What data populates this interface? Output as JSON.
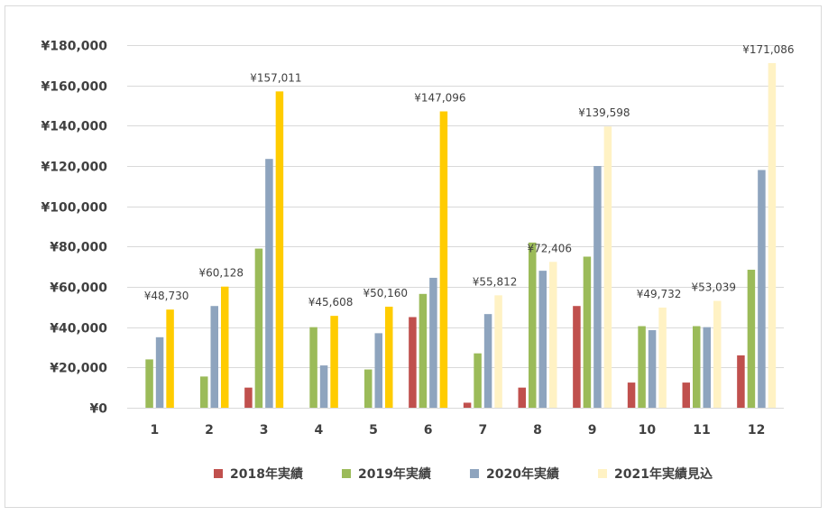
{
  "chart_data": {
    "type": "bar",
    "categories": [
      "1",
      "2",
      "3",
      "4",
      "5",
      "6",
      "7",
      "8",
      "9",
      "10",
      "11",
      "12"
    ],
    "ylim": [
      0,
      180000
    ],
    "yticks": [
      0,
      20000,
      40000,
      60000,
      80000,
      100000,
      120000,
      140000,
      160000,
      180000
    ],
    "ytick_labels": [
      "¥0",
      "¥20,000",
      "¥40,000",
      "¥60,000",
      "¥80,000",
      "¥100,000",
      "¥120,000",
      "¥140,000",
      "¥160,000",
      "¥180,000"
    ],
    "grid": true,
    "legend_position": "bottom",
    "series": [
      {
        "name": "2018年実績",
        "color": "#c0504d",
        "values": [
          0,
          0,
          10000,
          0,
          0,
          45000,
          2500,
          10000,
          50500,
          12500,
          12500,
          26000
        ]
      },
      {
        "name": "2019年実績",
        "color": "#9bbb59",
        "values": [
          24000,
          15500,
          79000,
          40000,
          19000,
          56500,
          27000,
          82000,
          75000,
          40500,
          40500,
          68500
        ]
      },
      {
        "name": "2020年実績",
        "color": "#8ea4be",
        "values": [
          35000,
          50500,
          123500,
          21000,
          37000,
          64500,
          46500,
          68000,
          120000,
          38500,
          40000,
          118000
        ]
      },
      {
        "name": "2021年実績見込",
        "values": [
          48730,
          60128,
          157011,
          45608,
          50160,
          147096,
          55812,
          72406,
          139598,
          49732,
          53039,
          171086
        ],
        "bar_colors": [
          "#ffcc00",
          "#ffcc00",
          "#ffcc00",
          "#ffcc00",
          "#ffcc00",
          "#ffcc00",
          "#fff2c4",
          "#fff2c4",
          "#fff2c4",
          "#fff2c4",
          "#fff2c4",
          "#fff2c4"
        ],
        "legend_color": "#fff2c4",
        "data_labels": [
          "¥48,730",
          "¥60,128",
          "¥157,011",
          "¥45,608",
          "¥50,160",
          "¥147,096",
          "¥55,812",
          "¥72,406",
          "¥139,598",
          "¥49,732",
          "¥53,039",
          "¥171,086"
        ]
      }
    ]
  }
}
